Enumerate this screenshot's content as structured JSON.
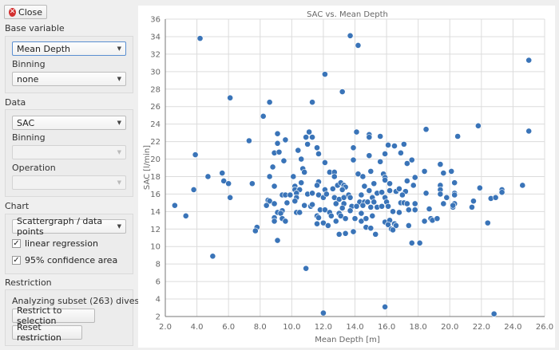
{
  "close_button": {
    "label": "Close",
    "icon": "close-circle-icon"
  },
  "base_variable": {
    "title": "Base variable",
    "variable": "Mean Depth",
    "binning_label": "Binning",
    "binning": "none"
  },
  "data_section": {
    "title": "Data",
    "variable": "SAC",
    "binning_label": "Binning",
    "binning": "",
    "operation_label": "Operation",
    "operation": ""
  },
  "chart_section": {
    "title": "Chart",
    "type": "Scattergraph / data points",
    "linear_regression": {
      "label": "linear regression",
      "checked": true
    },
    "confidence_area": {
      "label": "95% confidence area",
      "checked": true
    }
  },
  "restriction": {
    "title": "Restriction",
    "status": "Analyzing subset (263) dives",
    "restrict_button": "Restrict to selection",
    "reset_button": "Reset restriction"
  },
  "colors": {
    "point": "#3a74b8",
    "grid": "#dcdcdc"
  },
  "chart_data": {
    "type": "scatter",
    "title": "SAC vs. Mean Depth",
    "xlabel": "Mean Depth [m]",
    "ylabel": "SAC [l/min]",
    "xlim": [
      2,
      26
    ],
    "ylim": [
      2,
      36
    ],
    "xticks": [
      "2.0",
      "4.0",
      "6.0",
      "8.0",
      "10.0",
      "12.0",
      "14.0",
      "16.0",
      "18.0",
      "20.0",
      "22.0",
      "24.0",
      "26.0"
    ],
    "yticks": [
      "2",
      "4",
      "6",
      "8",
      "10",
      "12",
      "14",
      "16",
      "18",
      "20",
      "22",
      "24",
      "26",
      "28",
      "30",
      "32",
      "34",
      "36"
    ],
    "grid": true,
    "points": [
      [
        4.2,
        33.8
      ],
      [
        13.7,
        34.1
      ],
      [
        14.2,
        33.0
      ],
      [
        12.1,
        29.7
      ],
      [
        13.2,
        27.7
      ],
      [
        5.0,
        8.9
      ],
      [
        10.9,
        7.5
      ],
      [
        12.0,
        2.4
      ],
      [
        15.9,
        3.1
      ],
      [
        22.8,
        2.3
      ],
      [
        25.0,
        31.3
      ],
      [
        6.1,
        27.0
      ],
      [
        8.6,
        26.5
      ],
      [
        11.3,
        26.5
      ],
      [
        8.2,
        24.9
      ],
      [
        9.1,
        22.9
      ],
      [
        11.1,
        23.1
      ],
      [
        10.9,
        22.5
      ],
      [
        11.3,
        22.5
      ],
      [
        7.3,
        22.1
      ],
      [
        9.1,
        21.8
      ],
      [
        11.0,
        21.7
      ],
      [
        9.6,
        22.2
      ],
      [
        3.9,
        20.5
      ],
      [
        8.9,
        20.7
      ],
      [
        9.2,
        20.8
      ],
      [
        10.4,
        21.0
      ],
      [
        11.6,
        21.3
      ],
      [
        11.7,
        20.6
      ],
      [
        9.5,
        19.8
      ],
      [
        10.6,
        20.0
      ],
      [
        12.1,
        19.6
      ],
      [
        8.8,
        19.1
      ],
      [
        10.7,
        18.9
      ],
      [
        10.8,
        18.5
      ],
      [
        5.6,
        18.4
      ],
      [
        4.7,
        18.0
      ],
      [
        8.6,
        18.0
      ],
      [
        10.1,
        18.0
      ],
      [
        12.4,
        18.5
      ],
      [
        12.7,
        18.5
      ],
      [
        12.7,
        18.0
      ],
      [
        5.7,
        17.5
      ],
      [
        6.0,
        17.2
      ],
      [
        7.5,
        17.2
      ],
      [
        10.6,
        17.3
      ],
      [
        11.7,
        17.4
      ],
      [
        11.6,
        17.0
      ],
      [
        8.9,
        16.9
      ],
      [
        10.2,
        16.9
      ],
      [
        3.8,
        16.5
      ],
      [
        10.2,
        16.5
      ],
      [
        10.5,
        16.5
      ],
      [
        12.9,
        17.0
      ],
      [
        13.1,
        17.3
      ],
      [
        13.3,
        17.0
      ],
      [
        13.4,
        16.8
      ],
      [
        12.6,
        16.6
      ],
      [
        12.1,
        16.5
      ],
      [
        13.2,
        16.5
      ],
      [
        11.0,
        16.0
      ],
      [
        11.3,
        16.1
      ],
      [
        11.7,
        15.9
      ],
      [
        12.0,
        15.6
      ],
      [
        12.2,
        16.0
      ],
      [
        9.4,
        15.9
      ],
      [
        9.6,
        15.9
      ],
      [
        9.9,
        15.9
      ],
      [
        10.3,
        16.1
      ],
      [
        10.3,
        15.6
      ],
      [
        10.2,
        15.2
      ],
      [
        6.1,
        15.6
      ],
      [
        12.7,
        15.6
      ],
      [
        13.0,
        15.4
      ],
      [
        13.3,
        15.6
      ],
      [
        13.6,
        15.9
      ],
      [
        13.7,
        15.6
      ],
      [
        8.5,
        15.3
      ],
      [
        8.6,
        15.2
      ],
      [
        9.7,
        15.0
      ],
      [
        8.9,
        14.9
      ],
      [
        8.4,
        14.7
      ],
      [
        12.8,
        14.9
      ],
      [
        13.3,
        14.9
      ],
      [
        13.8,
        14.6
      ],
      [
        14.1,
        14.6
      ],
      [
        2.6,
        14.7
      ],
      [
        10.8,
        14.7
      ],
      [
        11.2,
        14.6
      ],
      [
        11.3,
        14.8
      ],
      [
        11.8,
        14.2
      ],
      [
        12.1,
        14.2
      ],
      [
        12.4,
        13.9
      ],
      [
        13.2,
        14.4
      ],
      [
        13.7,
        14.1
      ],
      [
        9.1,
        13.9
      ],
      [
        9.4,
        14.1
      ],
      [
        9.3,
        13.8
      ],
      [
        10.3,
        13.9
      ],
      [
        10.5,
        13.9
      ],
      [
        11.6,
        13.5
      ],
      [
        11.7,
        13.3
      ],
      [
        12.5,
        13.5
      ],
      [
        13.0,
        13.8
      ],
      [
        13.1,
        13.5
      ],
      [
        3.3,
        13.5
      ],
      [
        8.9,
        13.3
      ],
      [
        9.4,
        13.2
      ],
      [
        8.9,
        12.9
      ],
      [
        9.6,
        12.9
      ],
      [
        12.8,
        12.9
      ],
      [
        13.4,
        13.2
      ],
      [
        14.0,
        13.2
      ],
      [
        11.6,
        12.6
      ],
      [
        12.0,
        12.7
      ],
      [
        12.3,
        12.4
      ],
      [
        7.8,
        12.2
      ],
      [
        7.7,
        11.8
      ],
      [
        13.0,
        11.4
      ],
      [
        13.4,
        11.5
      ],
      [
        13.9,
        11.7
      ],
      [
        9.1,
        10.7
      ],
      [
        14.1,
        23.1
      ],
      [
        14.9,
        22.8
      ],
      [
        14.9,
        22.5
      ],
      [
        15.6,
        22.6
      ],
      [
        18.5,
        23.4
      ],
      [
        21.8,
        23.8
      ],
      [
        25.0,
        23.2
      ],
      [
        20.5,
        22.6
      ],
      [
        13.9,
        21.3
      ],
      [
        16.1,
        21.6
      ],
      [
        16.5,
        21.5
      ],
      [
        17.1,
        21.7
      ],
      [
        15.9,
        20.6
      ],
      [
        14.9,
        20.4
      ],
      [
        16.9,
        20.7
      ],
      [
        13.9,
        19.9
      ],
      [
        15.6,
        19.7
      ],
      [
        17.3,
        19.5
      ],
      [
        17.6,
        19.9
      ],
      [
        19.4,
        19.4
      ],
      [
        14.2,
        18.3
      ],
      [
        14.5,
        18.0
      ],
      [
        15.0,
        18.6
      ],
      [
        15.8,
        18.3
      ],
      [
        15.9,
        17.9
      ],
      [
        15.9,
        17.6
      ],
      [
        16.2,
        17.2
      ],
      [
        17.3,
        17.5
      ],
      [
        17.8,
        17.9
      ],
      [
        18.4,
        18.6
      ],
      [
        19.6,
        18.4
      ],
      [
        20.1,
        18.6
      ],
      [
        15.2,
        17.2
      ],
      [
        14.6,
        16.9
      ],
      [
        17.7,
        17.0
      ],
      [
        19.4,
        17.0
      ],
      [
        20.3,
        17.3
      ],
      [
        19.4,
        16.5
      ],
      [
        21.9,
        16.7
      ],
      [
        24.6,
        17.0
      ],
      [
        23.3,
        16.5
      ],
      [
        23.3,
        16.2
      ],
      [
        14.9,
        16.4
      ],
      [
        15.4,
        16.1
      ],
      [
        15.7,
        16.2
      ],
      [
        16.2,
        16.4
      ],
      [
        16.6,
        16.3
      ],
      [
        16.8,
        16.6
      ],
      [
        17.2,
        16.3
      ],
      [
        17.0,
        15.9
      ],
      [
        18.5,
        16.1
      ],
      [
        19.4,
        16.0
      ],
      [
        20.3,
        16.1
      ],
      [
        20.3,
        15.9
      ],
      [
        14.4,
        15.9
      ],
      [
        15.1,
        15.6
      ],
      [
        15.9,
        15.6
      ],
      [
        19.8,
        15.6
      ],
      [
        22.6,
        15.5
      ],
      [
        22.9,
        15.6
      ],
      [
        14.3,
        15.1
      ],
      [
        14.6,
        15.1
      ],
      [
        14.8,
        15.1
      ],
      [
        15.2,
        15.1
      ],
      [
        16.0,
        15.1
      ],
      [
        16.9,
        15.0
      ],
      [
        17.1,
        15.0
      ],
      [
        17.3,
        14.9
      ],
      [
        17.8,
        14.9
      ],
      [
        19.6,
        14.9
      ],
      [
        20.3,
        14.9
      ],
      [
        21.5,
        15.2
      ],
      [
        14.1,
        14.6
      ],
      [
        14.5,
        14.7
      ],
      [
        15.0,
        14.5
      ],
      [
        15.4,
        14.5
      ],
      [
        15.7,
        14.6
      ],
      [
        16.1,
        14.6
      ],
      [
        17.4,
        14.2
      ],
      [
        17.8,
        14.2
      ],
      [
        20.2,
        14.5
      ],
      [
        20.2,
        14.7
      ],
      [
        21.4,
        14.5
      ],
      [
        14.4,
        13.8
      ],
      [
        16.4,
        14.0
      ],
      [
        16.8,
        13.9
      ],
      [
        18.7,
        14.3
      ],
      [
        15.1,
        13.5
      ],
      [
        14.0,
        13.2
      ],
      [
        14.4,
        12.9
      ],
      [
        14.7,
        13.2
      ],
      [
        15.9,
        12.8
      ],
      [
        16.2,
        13.0
      ],
      [
        18.8,
        13.2
      ],
      [
        18.9,
        13.0
      ],
      [
        19.2,
        13.2
      ],
      [
        18.4,
        12.9
      ],
      [
        16.1,
        12.5
      ],
      [
        16.5,
        12.6
      ],
      [
        16.6,
        12.4
      ],
      [
        16.3,
        12.0
      ],
      [
        16.4,
        11.9
      ],
      [
        17.4,
        12.4
      ],
      [
        22.4,
        12.7
      ],
      [
        14.7,
        12.2
      ],
      [
        15.0,
        12.1
      ],
      [
        13.9,
        11.7
      ],
      [
        15.3,
        11.4
      ],
      [
        17.6,
        10.4
      ],
      [
        18.1,
        10.4
      ]
    ]
  }
}
